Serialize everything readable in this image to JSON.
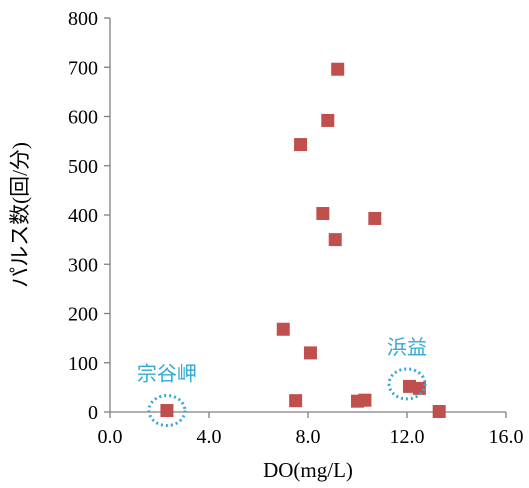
{
  "chart_data": {
    "type": "scatter",
    "title": "",
    "xlabel": "DO(mg/L)",
    "ylabel": "パルス数(回/分)",
    "xlim": [
      0,
      16
    ],
    "ylim": [
      0,
      800
    ],
    "x_ticks": [
      0,
      4,
      8,
      12,
      16
    ],
    "x_tick_labels": [
      "0.0",
      "4.0",
      "8.0",
      "12.0",
      "16.0"
    ],
    "y_ticks": [
      0,
      100,
      200,
      300,
      400,
      500,
      600,
      700,
      800
    ],
    "y_tick_labels": [
      "0",
      "100",
      "200",
      "300",
      "400",
      "500",
      "600",
      "700",
      "800"
    ],
    "grid": false,
    "legend": "none",
    "marker_color": "#c0504d",
    "series": [
      {
        "points": [
          {
            "x": 2.3,
            "y": 3
          },
          {
            "x": 7.0,
            "y": 168
          },
          {
            "x": 7.5,
            "y": 23
          },
          {
            "x": 7.7,
            "y": 543
          },
          {
            "x": 8.1,
            "y": 120
          },
          {
            "x": 8.6,
            "y": 403
          },
          {
            "x": 8.8,
            "y": 592
          },
          {
            "x": 9.1,
            "y": 350
          },
          {
            "x": 9.2,
            "y": 696
          },
          {
            "x": 10.0,
            "y": 22
          },
          {
            "x": 10.3,
            "y": 24
          },
          {
            "x": 10.7,
            "y": 393
          },
          {
            "x": 12.1,
            "y": 52
          },
          {
            "x": 12.5,
            "y": 48
          },
          {
            "x": 13.3,
            "y": 1
          }
        ]
      }
    ],
    "annotations": [
      {
        "text": "宗谷岬",
        "x": 2.3,
        "y": 3,
        "color": "#31a9d9",
        "position": "above"
      },
      {
        "text": "浜益",
        "x": 12.0,
        "y": 57,
        "color": "#31a9d9",
        "position": "above"
      }
    ]
  }
}
